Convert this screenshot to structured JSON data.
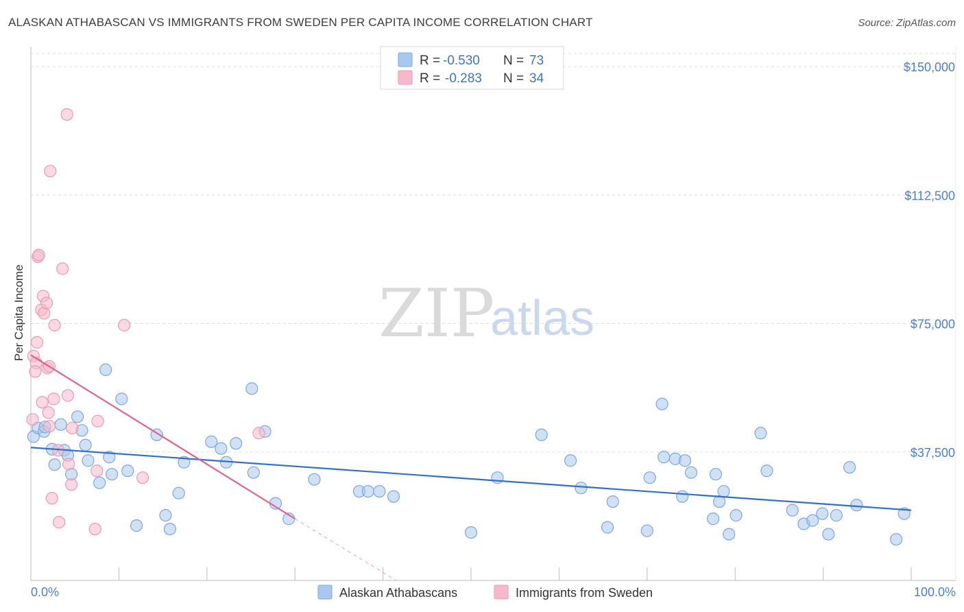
{
  "chart_data": {
    "type": "scatter",
    "title": "ALASKAN ATHABASCAN VS IMMIGRANTS FROM SWEDEN PER CAPITA INCOME CORRELATION CHART",
    "source": "Source: ZipAtlas.com",
    "watermark": {
      "zip": "ZIP",
      "atlas": "atlas"
    },
    "xlabel": "",
    "ylabel": "Per Capita Income",
    "xlim": [
      0,
      100
    ],
    "ylim": [
      0,
      152500
    ],
    "x_tick_labels": [
      {
        "value": 0,
        "label": "0.0%"
      },
      {
        "value": 100,
        "label": "100.0%"
      }
    ],
    "y_ticks": [
      {
        "value": 37500,
        "label": "$37,500"
      },
      {
        "value": 75000,
        "label": "$75,000"
      },
      {
        "value": 112500,
        "label": "$112,500"
      },
      {
        "value": 150000,
        "label": "$150,000"
      }
    ],
    "legend": {
      "r_label": "R =",
      "n_label": "N =",
      "entries": [
        {
          "r": "-0.530",
          "n": "73"
        },
        {
          "r": "-0.283",
          "n": "34"
        }
      ]
    },
    "colors": {
      "blue_fill": "#a9c8ef",
      "blue_stroke": "#7aa7e0",
      "blue_line": "#2f6fce",
      "pink_fill": "#f6b9cb",
      "pink_stroke": "#ef97b3",
      "pink_line": "#e0608f",
      "grid": "#dddddd",
      "tick_text": "#4a7fd0"
    },
    "series": [
      {
        "name": "Alaskan Athabascans",
        "color": "blue",
        "trend": {
          "x0": 0,
          "y0": 38800,
          "x1": 100,
          "y1": 20500
        },
        "points": [
          [
            0.3,
            42000
          ],
          [
            0.8,
            44500
          ],
          [
            1.5,
            43500
          ],
          [
            1.6,
            44800
          ],
          [
            2.4,
            38300
          ],
          [
            2.7,
            33800
          ],
          [
            3.4,
            45500
          ],
          [
            3.8,
            38000
          ],
          [
            4.2,
            36500
          ],
          [
            4.6,
            31000
          ],
          [
            5.3,
            47800
          ],
          [
            5.8,
            43800
          ],
          [
            6.2,
            39500
          ],
          [
            6.5,
            35000
          ],
          [
            7.8,
            28500
          ],
          [
            8.5,
            61500
          ],
          [
            8.9,
            36000
          ],
          [
            9.2,
            31000
          ],
          [
            10.3,
            53000
          ],
          [
            11.0,
            32000
          ],
          [
            12.0,
            16000
          ],
          [
            14.3,
            42500
          ],
          [
            15.3,
            19000
          ],
          [
            15.8,
            15000
          ],
          [
            16.8,
            25500
          ],
          [
            17.4,
            34500
          ],
          [
            20.5,
            40500
          ],
          [
            21.6,
            38500
          ],
          [
            22.2,
            34500
          ],
          [
            23.3,
            40000
          ],
          [
            25.1,
            56000
          ],
          [
            25.3,
            31500
          ],
          [
            26.6,
            43500
          ],
          [
            27.8,
            22500
          ],
          [
            29.3,
            18000
          ],
          [
            32.2,
            29500
          ],
          [
            37.3,
            26000
          ],
          [
            38.3,
            26000
          ],
          [
            39.6,
            26000
          ],
          [
            41.2,
            24500
          ],
          [
            50.0,
            14000
          ],
          [
            53.0,
            30000
          ],
          [
            58.0,
            42500
          ],
          [
            61.3,
            35000
          ],
          [
            62.5,
            27000
          ],
          [
            65.5,
            15500
          ],
          [
            66.1,
            23000
          ],
          [
            70.0,
            14500
          ],
          [
            70.3,
            30000
          ],
          [
            71.7,
            51500
          ],
          [
            71.9,
            36000
          ],
          [
            73.2,
            35500
          ],
          [
            74.0,
            24500
          ],
          [
            74.3,
            35000
          ],
          [
            75.0,
            31500
          ],
          [
            77.5,
            18000
          ],
          [
            77.8,
            31000
          ],
          [
            78.2,
            23000
          ],
          [
            78.7,
            26000
          ],
          [
            79.3,
            13500
          ],
          [
            80.1,
            19000
          ],
          [
            82.9,
            43000
          ],
          [
            83.6,
            32000
          ],
          [
            86.5,
            20500
          ],
          [
            87.8,
            16500
          ],
          [
            88.8,
            17500
          ],
          [
            89.9,
            19500
          ],
          [
            90.6,
            13500
          ],
          [
            91.5,
            19000
          ],
          [
            93.0,
            33000
          ],
          [
            93.8,
            22000
          ],
          [
            98.3,
            12000
          ],
          [
            99.2,
            19500
          ]
        ]
      },
      {
        "name": "Immigrants from Sweden",
        "color": "pink",
        "trend": {
          "x0": 0,
          "y0": 65800,
          "x1": 30,
          "y1": 18000
        },
        "trend_dashed": {
          "x0": 30,
          "y0": 18000,
          "x1": 41.5,
          "y1": -1000
        },
        "points": [
          [
            0.2,
            47000
          ],
          [
            0.3,
            65500
          ],
          [
            0.6,
            63500
          ],
          [
            0.5,
            61000
          ],
          [
            0.7,
            69500
          ],
          [
            0.8,
            94500
          ],
          [
            0.9,
            95000
          ],
          [
            1.2,
            79000
          ],
          [
            1.3,
            52000
          ],
          [
            1.4,
            83000
          ],
          [
            1.5,
            78000
          ],
          [
            1.8,
            81000
          ],
          [
            1.9,
            62000
          ],
          [
            2.0,
            49000
          ],
          [
            2.1,
            45000
          ],
          [
            2.1,
            62500
          ],
          [
            2.2,
            119500
          ],
          [
            2.4,
            24000
          ],
          [
            2.6,
            53000
          ],
          [
            2.7,
            74500
          ],
          [
            3.1,
            38000
          ],
          [
            3.2,
            17000
          ],
          [
            3.6,
            91000
          ],
          [
            4.1,
            136000
          ],
          [
            4.2,
            54000
          ],
          [
            4.3,
            34000
          ],
          [
            4.6,
            28000
          ],
          [
            4.7,
            44500
          ],
          [
            7.3,
            15000
          ],
          [
            7.5,
            32000
          ],
          [
            7.6,
            46500
          ],
          [
            10.6,
            74500
          ],
          [
            12.7,
            30000
          ],
          [
            25.9,
            43000
          ]
        ]
      }
    ]
  }
}
